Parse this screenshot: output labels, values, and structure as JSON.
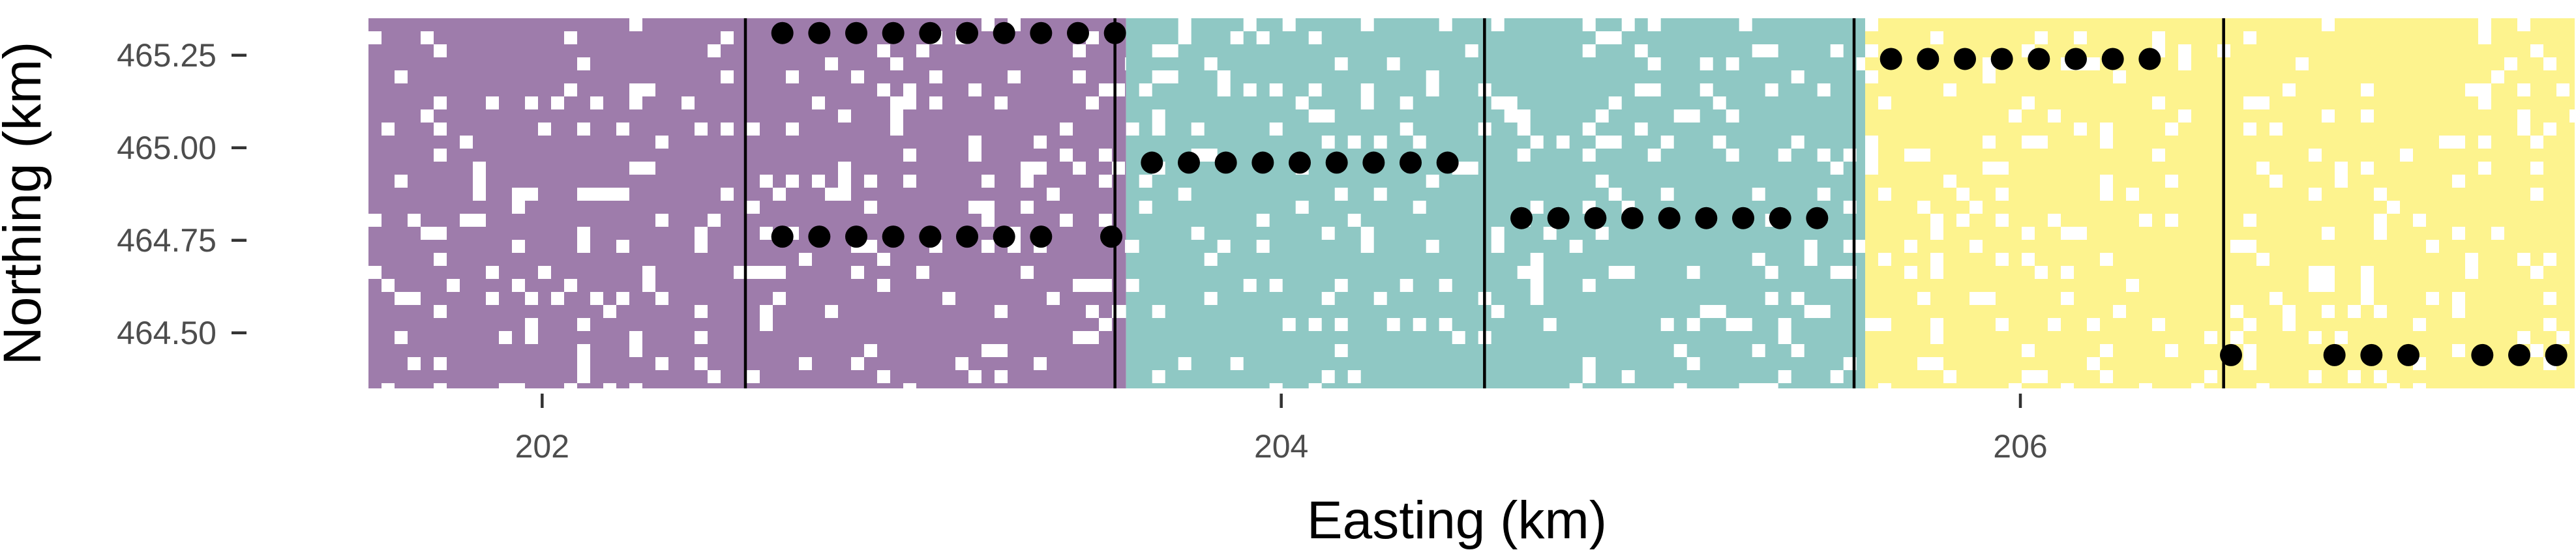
{
  "chart_data": {
    "type": "scatter",
    "title": "",
    "xlabel": "Easting (km)",
    "ylabel": "Northing (km)",
    "xlim": [
      201.5,
      207.5
    ],
    "ylim": [
      464.35,
      465.35
    ],
    "x_ticks": [
      202,
      204,
      206
    ],
    "x_tick_labels": [
      "202",
      "204",
      "206"
    ],
    "y_ticks": [
      465.25,
      465.0,
      464.75,
      464.5
    ],
    "y_tick_labels": [
      "465.25",
      "465.00",
      "464.75",
      "464.50"
    ],
    "grid": false,
    "legend": "none",
    "background_bands": [
      {
        "x_start": 201.53,
        "x_end": 203.58,
        "color": "#9e7cab"
      },
      {
        "x_start": 203.58,
        "x_end": 205.58,
        "color": "#8fc8c4"
      },
      {
        "x_start": 205.58,
        "x_end": 207.53,
        "color": "#fdf38e"
      }
    ],
    "vertical_lines": [
      202.55,
      203.55,
      204.55,
      205.55,
      206.55
    ],
    "series": [
      {
        "marker": "circle",
        "color": "#000000",
        "points": [
          [
            202.65,
            465.31
          ],
          [
            202.75,
            465.31
          ],
          [
            202.85,
            465.31
          ],
          [
            202.95,
            465.31
          ],
          [
            203.05,
            465.31
          ],
          [
            203.15,
            465.31
          ],
          [
            203.25,
            465.31
          ],
          [
            203.35,
            465.31
          ],
          [
            203.45,
            465.31
          ],
          [
            203.55,
            465.31
          ],
          [
            202.65,
            464.76
          ],
          [
            202.75,
            464.76
          ],
          [
            202.85,
            464.76
          ],
          [
            202.95,
            464.76
          ],
          [
            203.05,
            464.76
          ],
          [
            203.15,
            464.76
          ],
          [
            203.25,
            464.76
          ],
          [
            203.35,
            464.76
          ],
          [
            203.54,
            464.76
          ],
          [
            203.65,
            464.96
          ],
          [
            203.75,
            464.96
          ],
          [
            203.85,
            464.96
          ],
          [
            203.95,
            464.96
          ],
          [
            204.05,
            464.96
          ],
          [
            204.15,
            464.96
          ],
          [
            204.25,
            464.96
          ],
          [
            204.35,
            464.96
          ],
          [
            204.45,
            464.96
          ],
          [
            204.65,
            464.81
          ],
          [
            204.75,
            464.81
          ],
          [
            204.85,
            464.81
          ],
          [
            204.95,
            464.81
          ],
          [
            205.05,
            464.81
          ],
          [
            205.15,
            464.81
          ],
          [
            205.25,
            464.81
          ],
          [
            205.35,
            464.81
          ],
          [
            205.45,
            464.81
          ],
          [
            205.65,
            465.24
          ],
          [
            205.75,
            465.24
          ],
          [
            205.85,
            465.24
          ],
          [
            205.95,
            465.24
          ],
          [
            206.05,
            465.24
          ],
          [
            206.15,
            465.24
          ],
          [
            206.25,
            465.24
          ],
          [
            206.35,
            465.24
          ],
          [
            206.57,
            464.44
          ],
          [
            206.85,
            464.44
          ],
          [
            206.95,
            464.44
          ],
          [
            207.05,
            464.44
          ],
          [
            207.25,
            464.44
          ],
          [
            207.35,
            464.44
          ],
          [
            207.45,
            464.44
          ]
        ]
      }
    ]
  }
}
